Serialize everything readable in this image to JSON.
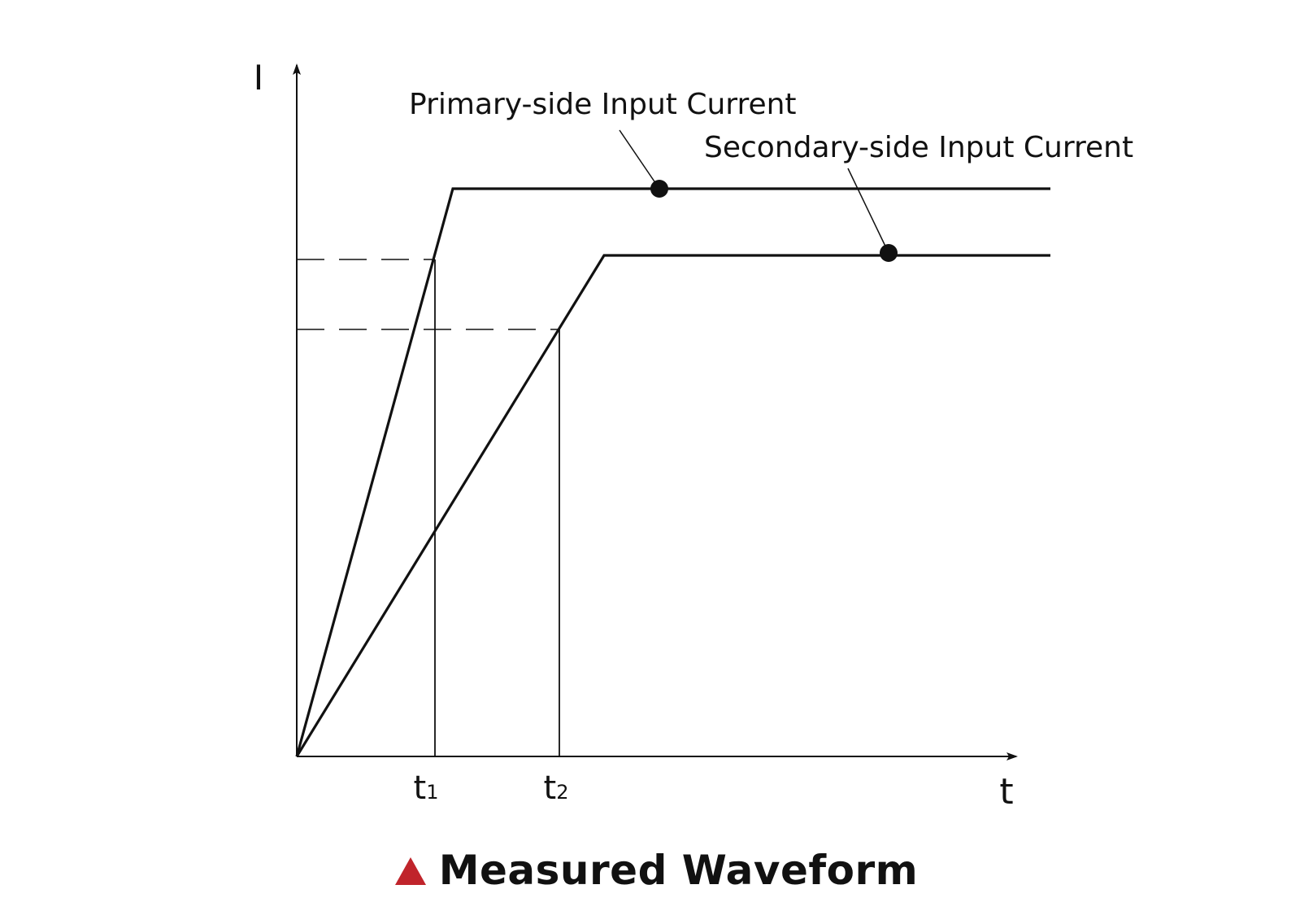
{
  "axes": {
    "y_label": "I",
    "x_label": "t",
    "ticks": [
      {
        "base": "t",
        "sub": "1"
      },
      {
        "base": "t",
        "sub": "2"
      }
    ]
  },
  "curves": {
    "primary": {
      "label": "Primary-side Input Current"
    },
    "secondary": {
      "label": "Secondary-side Input Current"
    }
  },
  "caption": {
    "text": "Measured Waveform",
    "icon": "triangle-icon",
    "icon_color": "#c0242b"
  },
  "colors": {
    "line": "#111111",
    "background": "#ffffff"
  }
}
